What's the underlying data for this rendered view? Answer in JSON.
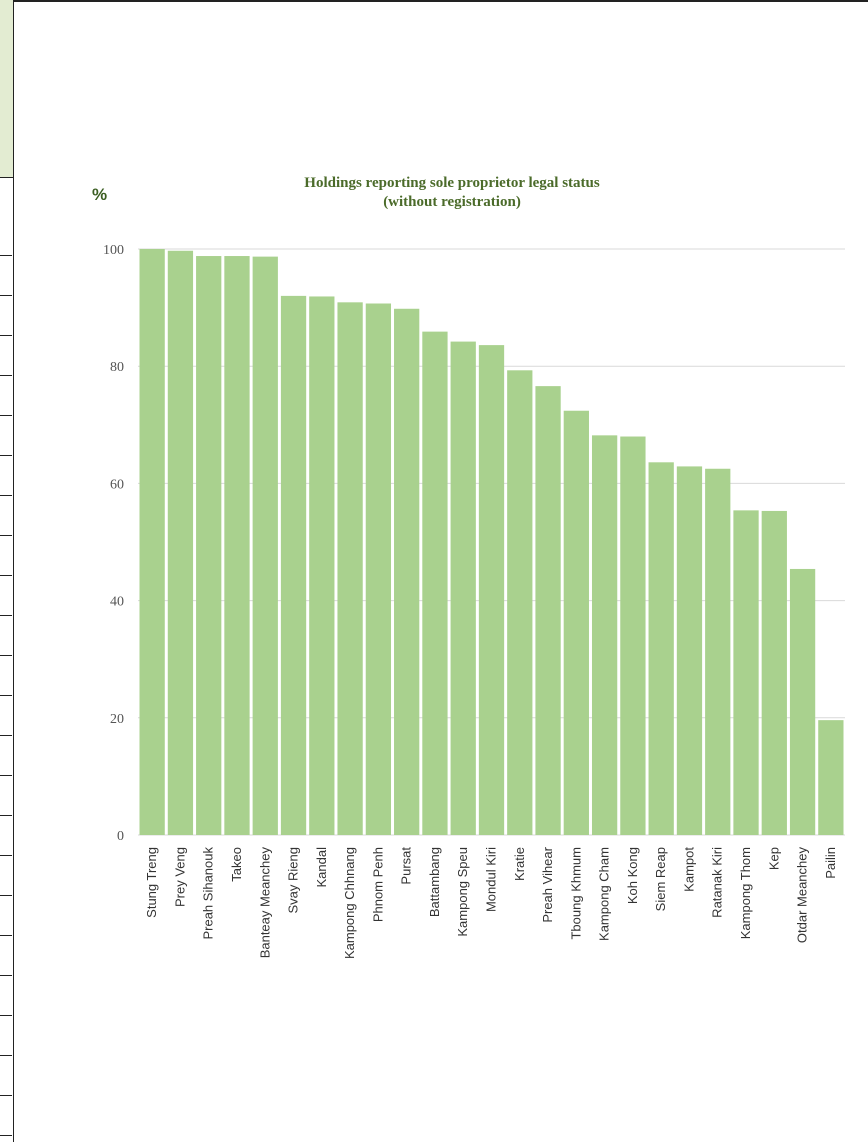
{
  "chart_data": {
    "type": "bar",
    "title_line1": "Holdings reporting sole proprietor legal status",
    "title_line2": "(without registration)",
    "ylabel": "%",
    "xlabel": "",
    "ylim": [
      0,
      100
    ],
    "yticks": [
      "0",
      "20",
      "40",
      "60",
      "80",
      "100"
    ],
    "grid": true,
    "legend": "none",
    "bar_color": "#a9d18e",
    "categories": [
      "Stung Treng",
      "Prey Veng",
      "Preah Sihanouk",
      "Takeo",
      "Banteay Meanchey",
      "Svay Rieng",
      "Kandal",
      "Kampong Chhnang",
      "Phnom Penh",
      "Pursat",
      "Battambang",
      "Kampong Speu",
      "Mondul Kiri",
      "Kratie",
      "Preah Vihear",
      "Tboung Khmum",
      "Kampong Cham",
      "Koh Kong",
      "Siem Reap",
      "Kampot",
      "Ratanak Kiri",
      "Kampong Thom",
      "Kep",
      "Otdar Meanchey",
      "Pailin"
    ],
    "values": [
      100,
      99.7,
      98.8,
      98.8,
      98.7,
      92.0,
      91.9,
      90.9,
      90.7,
      89.8,
      85.9,
      84.2,
      83.6,
      79.3,
      76.6,
      72.4,
      68.2,
      68.0,
      63.6,
      62.9,
      62.5,
      55.4,
      55.3,
      45.4,
      19.6
    ]
  }
}
